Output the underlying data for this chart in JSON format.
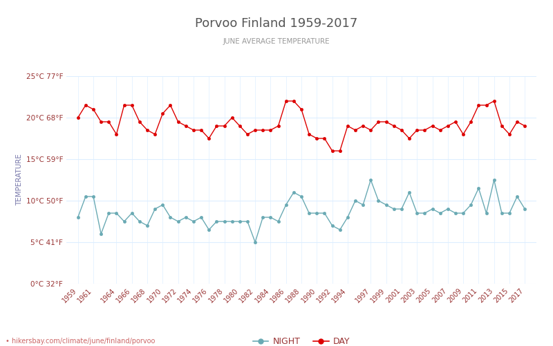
{
  "title": "Porvoo Finland 1959-2017",
  "subtitle": "JUNE AVERAGE TEMPERATURE",
  "ylabel": "TEMPERATURE",
  "watermark": "hikersbay.com/climate/june/finland/porvoo",
  "years": [
    1959,
    1960,
    1961,
    1962,
    1963,
    1964,
    1965,
    1966,
    1967,
    1968,
    1969,
    1970,
    1971,
    1972,
    1973,
    1974,
    1975,
    1976,
    1977,
    1978,
    1979,
    1980,
    1981,
    1982,
    1983,
    1984,
    1985,
    1986,
    1987,
    1988,
    1989,
    1990,
    1991,
    1992,
    1993,
    1994,
    1995,
    1996,
    1997,
    1998,
    1999,
    2000,
    2001,
    2002,
    2003,
    2004,
    2005,
    2006,
    2007,
    2008,
    2009,
    2010,
    2011,
    2012,
    2013,
    2014,
    2015,
    2016,
    2017
  ],
  "day_temps": [
    20.0,
    21.5,
    21.0,
    19.5,
    19.5,
    18.0,
    21.5,
    21.5,
    19.5,
    18.5,
    18.0,
    20.5,
    21.5,
    19.5,
    19.0,
    18.5,
    18.5,
    17.5,
    19.0,
    19.0,
    20.0,
    19.0,
    18.0,
    18.5,
    18.5,
    18.5,
    19.0,
    22.0,
    22.0,
    21.0,
    18.0,
    17.5,
    17.5,
    16.0,
    16.0,
    19.0,
    18.5,
    19.0,
    18.5,
    19.5,
    19.5,
    19.0,
    18.5,
    17.5,
    18.5,
    18.5,
    19.0,
    18.5,
    19.0,
    19.5,
    18.0,
    19.5,
    21.5,
    21.5,
    22.0,
    19.0,
    18.0,
    19.5,
    19.0
  ],
  "night_temps": [
    8.0,
    10.5,
    10.5,
    6.0,
    8.5,
    8.5,
    7.5,
    8.5,
    7.5,
    7.0,
    9.0,
    9.5,
    8.0,
    7.5,
    8.0,
    7.5,
    8.0,
    6.5,
    7.5,
    7.5,
    7.5,
    7.5,
    7.5,
    5.0,
    8.0,
    8.0,
    7.5,
    9.5,
    11.0,
    10.5,
    8.5,
    8.5,
    8.5,
    7.0,
    6.5,
    8.0,
    10.0,
    9.5,
    12.5,
    10.0,
    9.5,
    9.0,
    9.0,
    11.0,
    8.5,
    8.5,
    9.0,
    8.5,
    9.0,
    8.5,
    8.5,
    9.5,
    11.5,
    8.5,
    12.5,
    8.5,
    8.5,
    10.5,
    9.0
  ],
  "day_color": "#dd0000",
  "night_color": "#6aaab4",
  "title_color": "#555555",
  "subtitle_color": "#999999",
  "ylabel_color": "#7777aa",
  "tick_label_color": "#993333",
  "xtick_label_color": "#993333",
  "watermark_color": "#cc6666",
  "grid_color": "#ddeeff",
  "background_color": "#ffffff",
  "ylim": [
    0,
    25
  ],
  "yticks_c": [
    0,
    5,
    10,
    15,
    20,
    25
  ],
  "ytick_labels_c": [
    "0°C 32°F",
    "5°C 41°F",
    "10°C 50°F",
    "15°C 59°F",
    "20°C 68°F",
    "25°C 77°F"
  ],
  "xtick_years": [
    1959,
    1961,
    1964,
    1966,
    1968,
    1970,
    1972,
    1974,
    1976,
    1978,
    1980,
    1982,
    1984,
    1986,
    1988,
    1990,
    1992,
    1994,
    1997,
    1999,
    2001,
    2003,
    2005,
    2007,
    2009,
    2011,
    2013,
    2015,
    2017
  ],
  "legend_night": "NIGHT",
  "legend_day": "DAY"
}
